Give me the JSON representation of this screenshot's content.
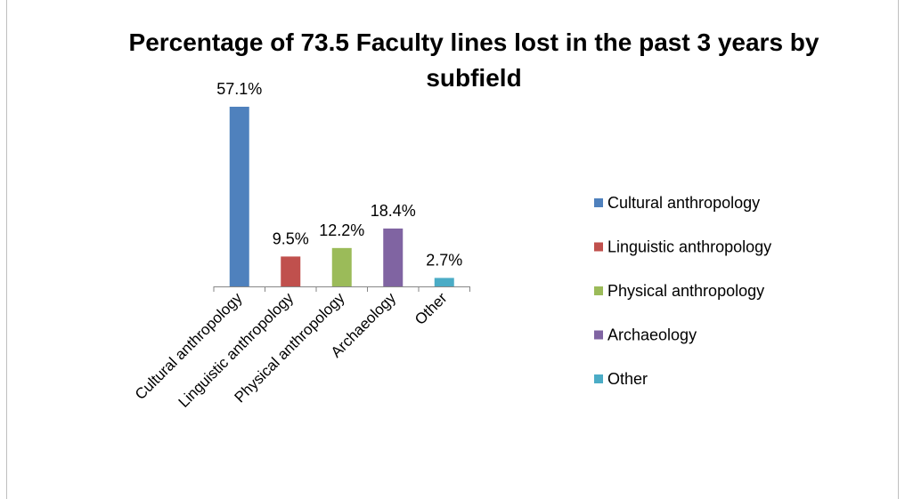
{
  "chart_data": {
    "type": "bar",
    "title": "Percentage of 73.5 Faculty lines lost in the past 3 years by subfield",
    "categories": [
      "Cultural anthropology",
      "Linguistic anthropology",
      "Physical anthropology",
      "Archaeology",
      "Other"
    ],
    "values": [
      57.1,
      9.5,
      12.2,
      18.4,
      2.7
    ],
    "value_labels": [
      "57.1%",
      "9.5%",
      "12.2%",
      "18.4%",
      "2.7%"
    ],
    "colors": [
      "#4f81bd",
      "#c0504d",
      "#9bbb59",
      "#8064a2",
      "#4bacc6"
    ],
    "legend": "right"
  }
}
